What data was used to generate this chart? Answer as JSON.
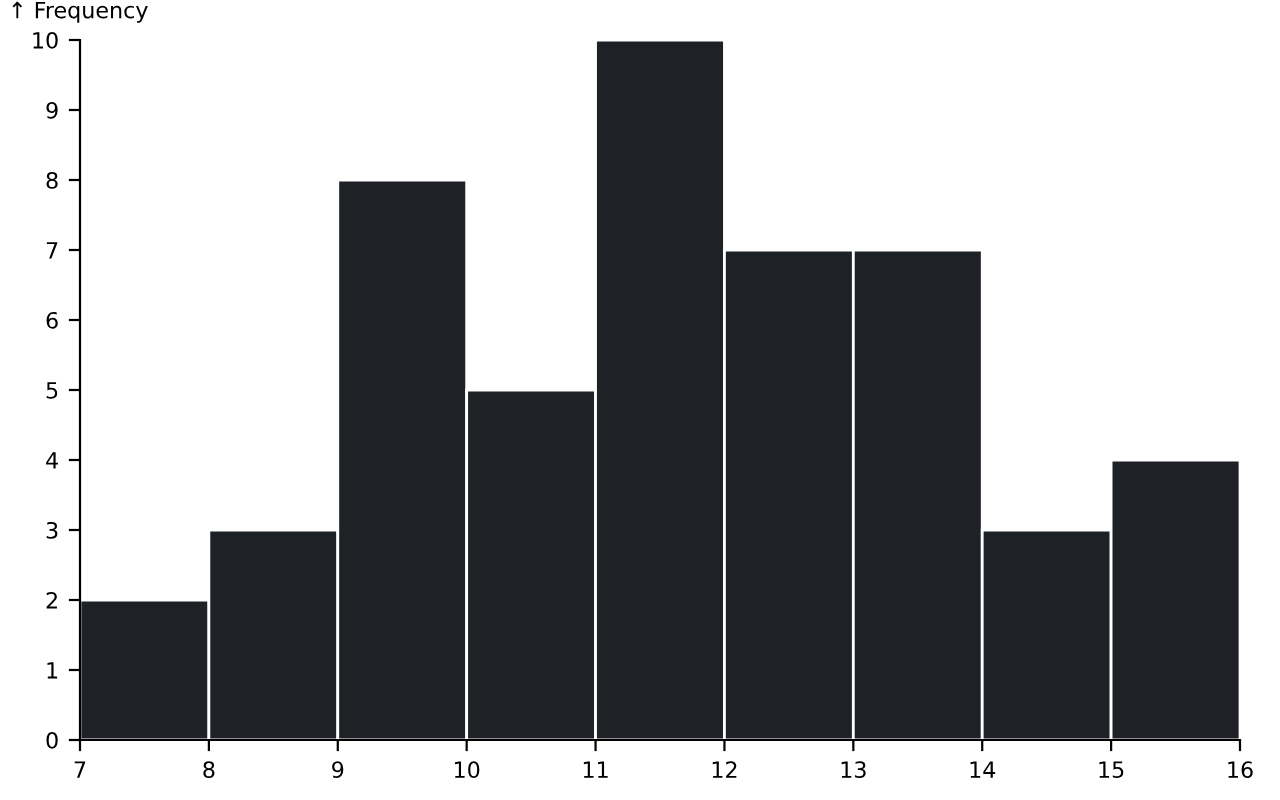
{
  "chart_data": {
    "type": "histogram",
    "ylabel": "↑ Frequency",
    "bins": [
      7,
      8,
      9,
      10,
      11,
      12,
      13,
      14,
      15,
      16
    ],
    "values": [
      2,
      3,
      8,
      5,
      10,
      7,
      7,
      3,
      4
    ],
    "color": "#1e2126",
    "xlim": [
      7,
      16
    ],
    "xticks": [
      7,
      8,
      9,
      10,
      11,
      12,
      13,
      14,
      15,
      16
    ],
    "ylim": [
      0,
      10
    ],
    "yticks": [
      0,
      1,
      2,
      3,
      4,
      5,
      6,
      7,
      8,
      9,
      10
    ],
    "grid": false
  }
}
